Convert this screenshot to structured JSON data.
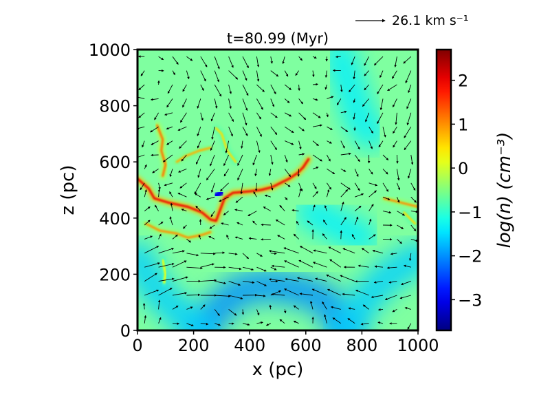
{
  "chart_data": {
    "type": "heatmap",
    "title": "t=80.99 (Myr)",
    "xlabel": "x (pc)",
    "ylabel": "z (pc)",
    "xlim": [
      0,
      1000
    ],
    "ylim": [
      0,
      1000
    ],
    "x_ticks": [
      "0",
      "200",
      "400",
      "600",
      "800",
      "1000"
    ],
    "y_ticks": [
      "0",
      "200",
      "400",
      "600",
      "800",
      "1000"
    ],
    "colorbar": {
      "label": "log(n) (cm⁻³)",
      "range": [
        -3.7,
        2.7
      ],
      "ticks": [
        "−3",
        "−2",
        "−1",
        "0",
        "1",
        "2"
      ],
      "colormap": "jet"
    },
    "quiver_key": {
      "label": "26.1 km s⁻¹",
      "magnitude": 26.1
    },
    "colors": {
      "background_level": "#7fffa0",
      "frame": "#000000",
      "arrow": "#000000"
    },
    "features": [
      {
        "kind": "dense-filament",
        "log_n": 2.0,
        "path": [
          [
            0,
            540
          ],
          [
            40,
            505
          ],
          [
            60,
            470
          ],
          [
            110,
            455
          ],
          [
            180,
            440
          ],
          [
            230,
            420
          ],
          [
            260,
            395
          ],
          [
            280,
            390
          ],
          [
            310,
            470
          ],
          [
            340,
            490
          ],
          [
            400,
            495
          ],
          [
            440,
            500
          ],
          [
            480,
            510
          ],
          [
            500,
            520
          ],
          [
            540,
            540
          ],
          [
            570,
            560
          ],
          [
            590,
            580
          ],
          [
            610,
            610
          ]
        ]
      },
      {
        "kind": "dense-filament",
        "log_n": 1.0,
        "path": [
          [
            30,
            380
          ],
          [
            80,
            355
          ],
          [
            140,
            345
          ],
          [
            180,
            330
          ],
          [
            230,
            340
          ],
          [
            260,
            350
          ]
        ]
      },
      {
        "kind": "dense-filament",
        "log_n": 1.2,
        "path": [
          [
            70,
            730
          ],
          [
            90,
            680
          ],
          [
            85,
            640
          ],
          [
            100,
            590
          ],
          [
            90,
            550
          ]
        ]
      },
      {
        "kind": "dense-filament",
        "log_n": 0.8,
        "path": [
          [
            140,
            600
          ],
          [
            170,
            620
          ],
          [
            220,
            640
          ],
          [
            260,
            650
          ]
        ]
      },
      {
        "kind": "dense-filament",
        "log_n": 1.0,
        "path": [
          [
            880,
            470
          ],
          [
            920,
            460
          ],
          [
            960,
            450
          ],
          [
            1000,
            440
          ]
        ]
      },
      {
        "kind": "dense-filament",
        "log_n": 0.5,
        "path": [
          [
            950,
            420
          ],
          [
            990,
            380
          ]
        ]
      },
      {
        "kind": "dense-filament",
        "log_n": 0.5,
        "path": [
          [
            280,
            720
          ],
          [
            300,
            700
          ],
          [
            320,
            640
          ],
          [
            350,
            600
          ]
        ]
      },
      {
        "kind": "dense-filament",
        "log_n": 0.3,
        "path": [
          [
            90,
            250
          ],
          [
            100,
            200
          ],
          [
            95,
            170
          ]
        ]
      },
      {
        "kind": "void",
        "log_n": -2.0,
        "path": [
          [
            230,
            0
          ],
          [
            290,
            80
          ],
          [
            360,
            140
          ],
          [
            450,
            160
          ],
          [
            540,
            150
          ],
          [
            620,
            130
          ],
          [
            680,
            100
          ],
          [
            740,
            0
          ]
        ]
      },
      {
        "kind": "void",
        "log_n": -1.6,
        "path": [
          [
            0,
            260
          ],
          [
            60,
            150
          ],
          [
            150,
            60
          ],
          [
            230,
            0
          ]
        ]
      },
      {
        "kind": "void",
        "log_n": -1.6,
        "path": [
          [
            740,
            0
          ],
          [
            820,
            120
          ],
          [
            900,
            200
          ],
          [
            1000,
            260
          ]
        ]
      },
      {
        "kind": "void",
        "log_n": -1.4,
        "path": [
          [
            720,
            980
          ],
          [
            760,
            860
          ],
          [
            790,
            760
          ],
          [
            830,
            700
          ]
        ]
      },
      {
        "kind": "void",
        "log_n": -1.4,
        "path": [
          [
            620,
            420
          ],
          [
            680,
            390
          ],
          [
            740,
            360
          ],
          [
            800,
            330
          ]
        ]
      },
      {
        "kind": "void",
        "log_n": -3.0,
        "path": [
          [
            280,
            480
          ],
          [
            300,
            490
          ]
        ]
      }
    ]
  }
}
